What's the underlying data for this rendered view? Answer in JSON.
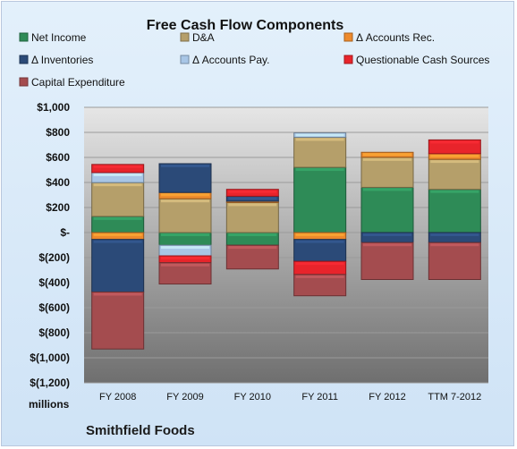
{
  "chart_data": {
    "type": "bar",
    "stacked": true,
    "title": "Free Cash Flow Components",
    "ylabel_unit": "millions",
    "company": "Smithfield Foods",
    "categories": [
      "FY 2008",
      "FY 2009",
      "FY 2010",
      "FY 2011",
      "FY 2012",
      "TTM 7-2012"
    ],
    "ylim": [
      -1200,
      1000
    ],
    "yticks": [
      1000,
      800,
      600,
      400,
      200,
      0,
      -200,
      -400,
      -600,
      -800,
      -1000,
      -1200
    ],
    "ytick_labels": [
      "$1,000",
      "$800",
      "$600",
      "$400",
      "$200",
      "$-",
      "$(200)",
      "$(400)",
      "$(600)",
      "$(800)",
      "$(1,000)",
      "$(1,200)"
    ],
    "grid": true,
    "legend_position": "top",
    "series": [
      {
        "name": "Net Income",
        "color": "#2e8b57",
        "values": [
          129,
          -101,
          -101,
          521,
          361,
          345
        ]
      },
      {
        "name": "D&A",
        "color": "#b59f6a",
        "values": [
          270,
          270,
          240,
          240,
          240,
          240
        ]
      },
      {
        "name": "Δ Accounts Rec.",
        "color": "#ee8a2c",
        "values": [
          -55,
          50,
          10,
          -55,
          40,
          45
        ]
      },
      {
        "name": "Δ Inventories",
        "color": "#2b4a78",
        "values": [
          -420,
          230,
          40,
          -175,
          -80,
          -80
        ]
      },
      {
        "name": "Δ Accounts Pay.",
        "color": "#a8c6e6",
        "values": [
          80,
          -85,
          0,
          35,
          0,
          0
        ]
      },
      {
        "name": "Questionable Cash Sources",
        "color": "#e8242b",
        "values": [
          65,
          -55,
          55,
          -105,
          0,
          110
        ]
      },
      {
        "name": "Capital Expenditure",
        "color": "#a44c4f",
        "values": [
          -455,
          -170,
          -190,
          -170,
          -295,
          -295
        ]
      }
    ]
  }
}
